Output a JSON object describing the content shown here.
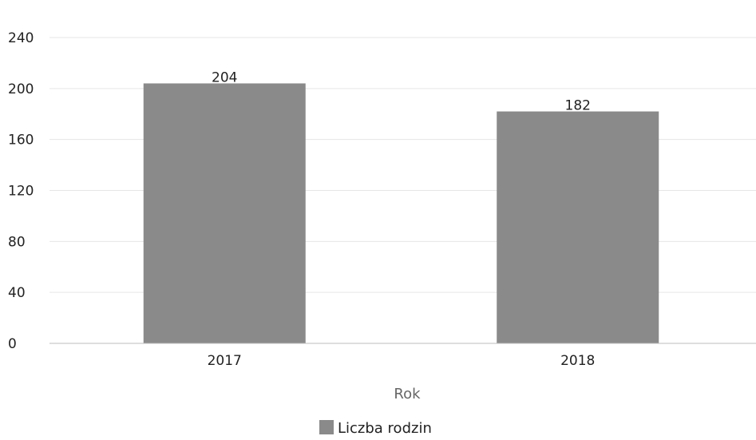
{
  "chart_data": {
    "type": "bar",
    "title": "",
    "categories": [
      "2017",
      "2018"
    ],
    "series": [
      {
        "name": "Liczba rodzin",
        "values": [
          204,
          182
        ]
      }
    ],
    "xlabel": "Rok",
    "ylabel": "",
    "ylim": [
      0,
      240
    ],
    "yticks": [
      0,
      40,
      80,
      120,
      160,
      200,
      240
    ],
    "grid": true,
    "legend_position": "bottom",
    "data_labels": true,
    "colors": {
      "bar": "#8a8a8a",
      "grid": "#e6e6e6",
      "baseline": "#bdbdbd"
    }
  }
}
